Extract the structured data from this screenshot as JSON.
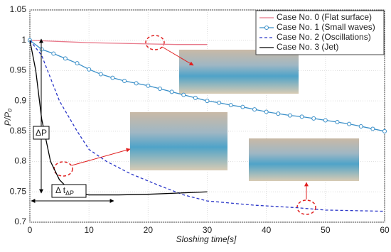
{
  "chart_data": {
    "type": "line",
    "xlabel": "Sloshing time[s]",
    "ylabel": "P/P₀",
    "xlim": [
      0,
      60
    ],
    "ylim": [
      0.7,
      1.05
    ],
    "xticks": [
      0,
      10,
      20,
      30,
      40,
      50,
      60
    ],
    "yticks": [
      0.7,
      0.75,
      0.8,
      0.85,
      0.9,
      0.95,
      1,
      1.05
    ],
    "grid": true,
    "legend": "upper right",
    "series": [
      {
        "name": "Case No. 0 (Flat surface)",
        "color": "#e8788a",
        "style": "solid",
        "marker": false,
        "x": [
          0,
          5,
          10,
          15,
          20,
          25,
          30
        ],
        "values": [
          1.0,
          0.998,
          0.996,
          0.995,
          0.994,
          0.993,
          0.993
        ]
      },
      {
        "name": "Case No. 1 (Small waves)",
        "color": "#3a8fc8",
        "style": "solid",
        "marker": true,
        "x": [
          0,
          2,
          4,
          6,
          8,
          10,
          12,
          14,
          16,
          18,
          20,
          22,
          24,
          26,
          28,
          30,
          32,
          34,
          36,
          38,
          40,
          42,
          44,
          46,
          48,
          50,
          52,
          54,
          56,
          58,
          60
        ],
        "values": [
          1.0,
          0.985,
          0.978,
          0.97,
          0.962,
          0.952,
          0.944,
          0.938,
          0.933,
          0.929,
          0.925,
          0.92,
          0.915,
          0.91,
          0.905,
          0.9,
          0.897,
          0.893,
          0.89,
          0.886,
          0.882,
          0.879,
          0.876,
          0.874,
          0.871,
          0.868,
          0.865,
          0.862,
          0.858,
          0.854,
          0.85
        ]
      },
      {
        "name": "Case No. 2 (Oscillations)",
        "color": "#2a36c8",
        "style": "dashed",
        "marker": false,
        "x": [
          0,
          2,
          3,
          5,
          8,
          10,
          13,
          17,
          22,
          26,
          30,
          38,
          45,
          50,
          60
        ],
        "values": [
          1.0,
          0.975,
          0.95,
          0.9,
          0.85,
          0.82,
          0.8,
          0.78,
          0.76,
          0.745,
          0.735,
          0.728,
          0.724,
          0.72,
          0.718
        ]
      },
      {
        "name": "Case No. 3 (Jet)",
        "color": "#000000",
        "style": "solid",
        "marker": false,
        "x": [
          0,
          1,
          2,
          3.5,
          5,
          6.5,
          8,
          10,
          15,
          20,
          25,
          30
        ],
        "values": [
          1.0,
          0.95,
          0.87,
          0.8,
          0.77,
          0.755,
          0.748,
          0.745,
          0.745,
          0.746,
          0.748,
          0.75
        ]
      }
    ],
    "annotations": {
      "delta_p": "ΔP",
      "delta_t": {
        "text": "Δ t",
        "subscript": "ΔP"
      }
    }
  }
}
